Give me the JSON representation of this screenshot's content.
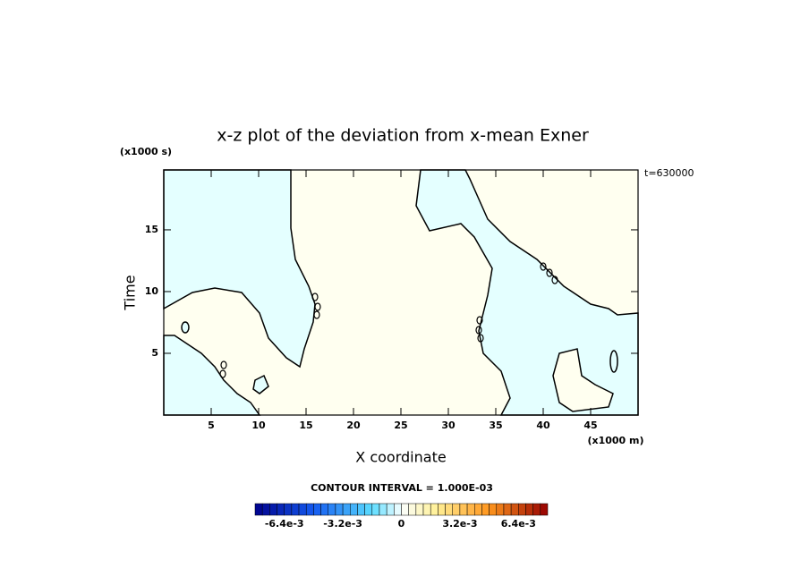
{
  "chart_data": {
    "type": "contour",
    "title": "x-z plot of the deviation from x-mean Exner",
    "x_label": "X coordinate",
    "y_label": "Time",
    "x_unit": "(x1000 m)",
    "y_unit": "(x1000 s)",
    "annotation": "t=630000",
    "xlim": [
      0,
      50
    ],
    "ylim": [
      0,
      19.85
    ],
    "xticks": [
      5,
      10,
      15,
      20,
      25,
      30,
      35,
      40,
      45
    ],
    "yticks": [
      5,
      10,
      15
    ],
    "contour_interval_label": "CONTOUR INTERVAL = 1.000E-03",
    "colorbar": {
      "lim": [
        -0.008,
        0.008
      ],
      "ticks": [
        {
          "value": -0.0064,
          "label": "-6.4e-3"
        },
        {
          "value": -0.0032,
          "label": "-3.2e-3"
        },
        0,
        {
          "value": 0.0032,
          "label": "3.2e-3"
        },
        {
          "value": 0.0064,
          "label": "6.4e-3"
        }
      ]
    }
  }
}
